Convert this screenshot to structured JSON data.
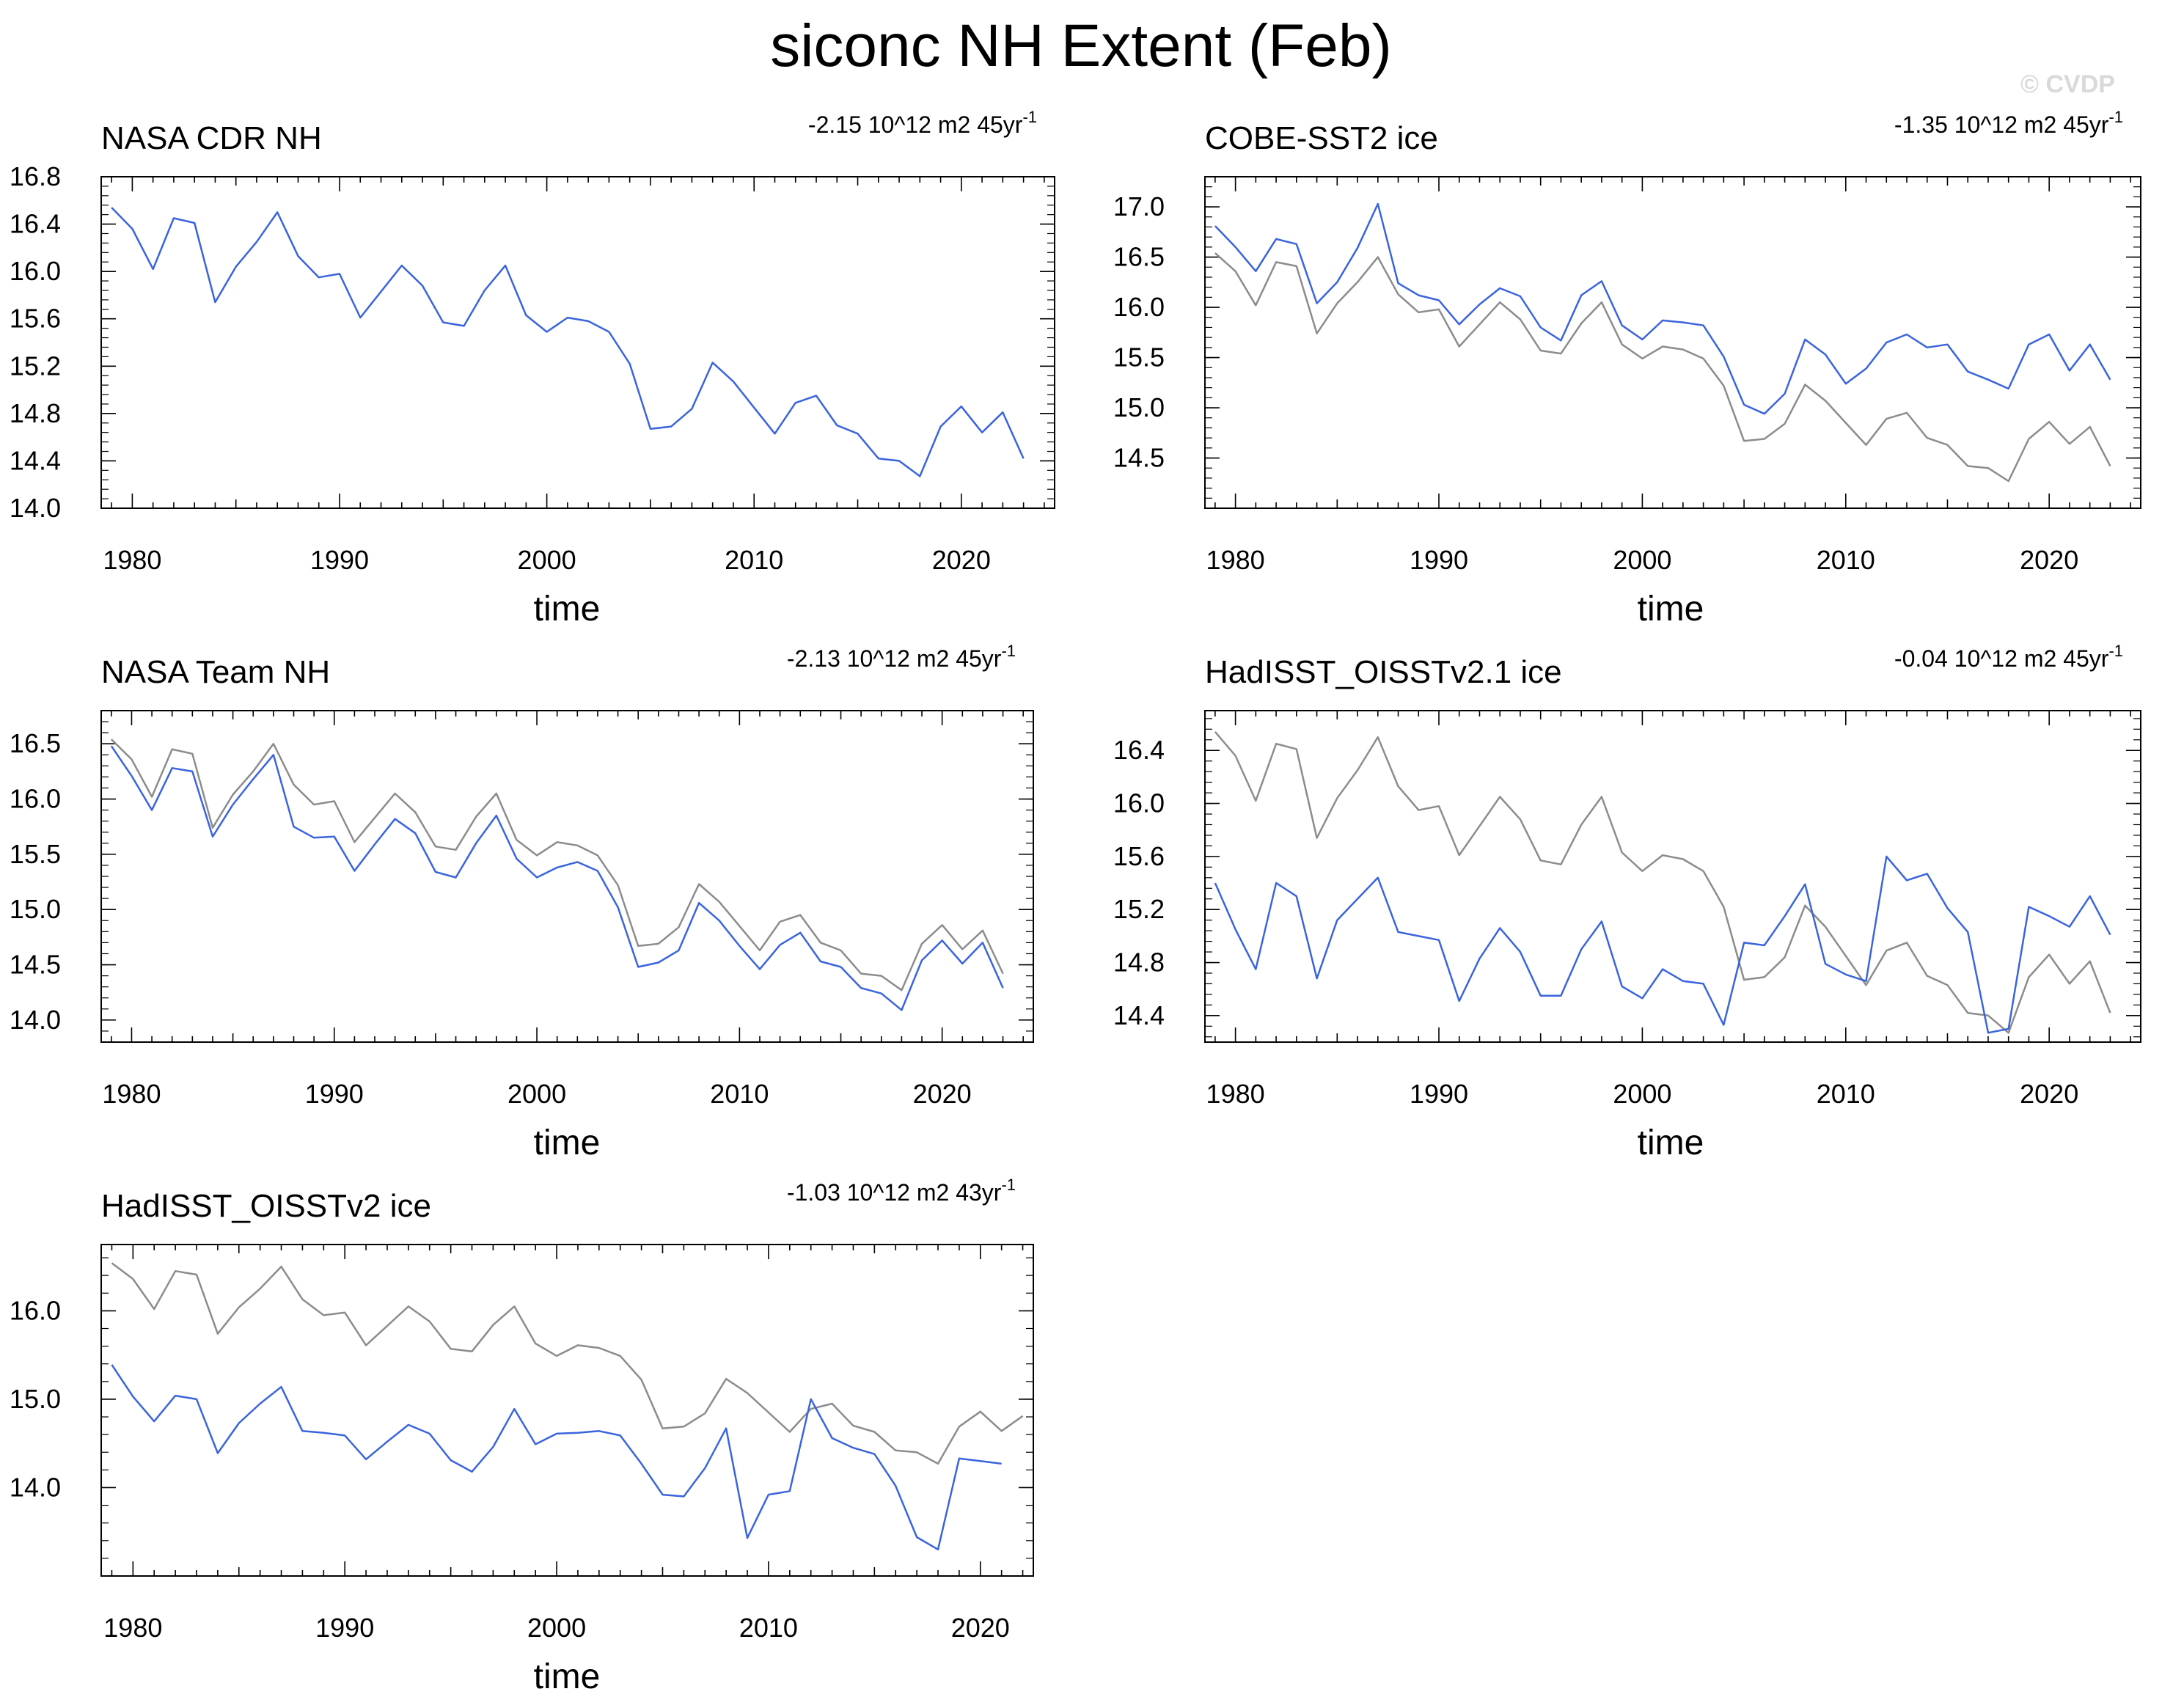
{
  "title": "siconc NH Extent (Feb)",
  "watermark": "© CVDP",
  "colors": {
    "series": "#3b64dc",
    "reference": "#8c8c8c",
    "axis": "#000000"
  },
  "chart_data": [
    {
      "type": "line",
      "title": "NASA CDR NH",
      "trend": "-2.15 10^12 m2 45yr",
      "trend_exp": "-1",
      "xlabel": "time",
      "xlim": [
        1978.5,
        2024.5
      ],
      "ylim": [
        14.0,
        16.8
      ],
      "xticks": [
        1980,
        1990,
        2000,
        2010,
        2020
      ],
      "yticks": [
        14.0,
        14.4,
        14.8,
        15.2,
        15.6,
        16.0,
        16.4,
        16.8
      ],
      "ytick_labels": [
        "14.0",
        "14.4",
        "14.8",
        "15.2",
        "15.6",
        "16.0",
        "16.4",
        "16.8"
      ],
      "x_start": 1979,
      "series": [
        {
          "color": "#3b64dc",
          "values": [
            16.54,
            16.36,
            16.02,
            16.45,
            16.41,
            15.74,
            16.04,
            16.25,
            16.5,
            16.13,
            15.95,
            15.98,
            15.61,
            15.83,
            16.05,
            15.88,
            15.57,
            15.54,
            15.84,
            16.05,
            15.63,
            15.49,
            15.61,
            15.58,
            15.49,
            15.22,
            14.67,
            14.69,
            14.84,
            15.23,
            15.07,
            14.85,
            14.63,
            14.89,
            14.95,
            14.7,
            14.63,
            14.42,
            14.4,
            14.27,
            14.69,
            14.86,
            14.64,
            14.81,
            14.42
          ]
        }
      ]
    },
    {
      "type": "line",
      "title": "COBE-SST2 ice",
      "trend": "-1.35 10^12 m2 45yr",
      "trend_exp": "-1",
      "xlabel": "time",
      "xlim": [
        1978.5,
        2024.5
      ],
      "ylim": [
        14.0,
        17.3
      ],
      "xticks": [
        1980,
        1990,
        2000,
        2010,
        2020
      ],
      "yticks": [
        14.5,
        15.0,
        15.5,
        16.0,
        16.5,
        17.0
      ],
      "ytick_labels": [
        "14.5",
        "15.0",
        "15.5",
        "16.0",
        "16.5",
        "17.0"
      ],
      "x_start": 1979,
      "series": [
        {
          "color": "#8c8c8c",
          "values": [
            16.54,
            16.36,
            16.02,
            16.45,
            16.41,
            15.74,
            16.04,
            16.25,
            16.5,
            16.13,
            15.95,
            15.98,
            15.61,
            15.83,
            16.05,
            15.88,
            15.57,
            15.54,
            15.84,
            16.05,
            15.63,
            15.49,
            15.61,
            15.58,
            15.49,
            15.22,
            14.67,
            14.69,
            14.84,
            15.23,
            15.07,
            14.85,
            14.63,
            14.89,
            14.95,
            14.7,
            14.63,
            14.42,
            14.4,
            14.27,
            14.69,
            14.86,
            14.64,
            14.81,
            14.42
          ]
        },
        {
          "color": "#3b64dc",
          "values": [
            16.81,
            16.6,
            16.36,
            16.68,
            16.63,
            16.04,
            16.25,
            16.59,
            17.03,
            16.24,
            16.12,
            16.07,
            15.83,
            16.03,
            16.19,
            16.11,
            15.8,
            15.67,
            16.12,
            16.26,
            15.82,
            15.68,
            15.87,
            15.85,
            15.82,
            15.51,
            15.03,
            14.94,
            15.14,
            15.68,
            15.53,
            15.24,
            15.39,
            15.65,
            15.73,
            15.6,
            15.63,
            15.36,
            15.28,
            15.19,
            15.63,
            15.73,
            15.37,
            15.63,
            15.28
          ]
        }
      ]
    },
    {
      "type": "line",
      "title": "NASA Team NH",
      "trend": "-2.13 10^12 m2 45yr",
      "trend_exp": "-1",
      "xlabel": "time",
      "xlim": [
        1978.5,
        2024.5
      ],
      "ylim": [
        13.8,
        16.8
      ],
      "xticks": [
        1980,
        1990,
        2000,
        2010,
        2020
      ],
      "yticks": [
        14.0,
        14.5,
        15.0,
        15.5,
        16.0,
        16.5
      ],
      "ytick_labels": [
        "14.0",
        "14.5",
        "15.0",
        "15.5",
        "16.0",
        "16.5"
      ],
      "x_start": 1979,
      "series": [
        {
          "color": "#8c8c8c",
          "values": [
            16.54,
            16.36,
            16.02,
            16.45,
            16.41,
            15.74,
            16.04,
            16.25,
            16.5,
            16.13,
            15.95,
            15.98,
            15.61,
            15.83,
            16.05,
            15.88,
            15.57,
            15.54,
            15.84,
            16.05,
            15.63,
            15.49,
            15.61,
            15.58,
            15.49,
            15.22,
            14.67,
            14.69,
            14.84,
            15.23,
            15.07,
            14.85,
            14.63,
            14.89,
            14.95,
            14.7,
            14.63,
            14.42,
            14.4,
            14.27,
            14.69,
            14.86,
            14.64,
            14.81,
            14.42
          ]
        },
        {
          "color": "#3b64dc",
          "values": [
            16.48,
            16.21,
            15.9,
            16.28,
            16.25,
            15.66,
            15.95,
            16.18,
            16.4,
            15.75,
            15.65,
            15.66,
            15.35,
            15.59,
            15.82,
            15.69,
            15.34,
            15.29,
            15.6,
            15.85,
            15.46,
            15.29,
            15.38,
            15.43,
            15.35,
            15.02,
            14.48,
            14.52,
            14.63,
            15.06,
            14.9,
            14.67,
            14.46,
            14.68,
            14.79,
            14.53,
            14.48,
            14.29,
            14.24,
            14.09,
            14.54,
            14.72,
            14.51,
            14.7,
            14.29
          ]
        }
      ]
    },
    {
      "type": "line",
      "title": "HadISST_OISSTv2.1 ice",
      "trend": "-0.04 10^12 m2 45yr",
      "trend_exp": "-1",
      "xlabel": "time",
      "xlim": [
        1978.5,
        2024.5
      ],
      "ylim": [
        14.2,
        16.7
      ],
      "xticks": [
        1980,
        1990,
        2000,
        2010,
        2020
      ],
      "yticks": [
        14.4,
        14.8,
        15.2,
        15.6,
        16.0,
        16.4
      ],
      "ytick_labels": [
        "14.4",
        "14.8",
        "15.2",
        "15.6",
        "16.0",
        "16.4"
      ],
      "x_start": 1979,
      "series": [
        {
          "color": "#8c8c8c",
          "values": [
            16.54,
            16.36,
            16.02,
            16.45,
            16.41,
            15.74,
            16.04,
            16.25,
            16.5,
            16.13,
            15.95,
            15.98,
            15.61,
            15.83,
            16.05,
            15.88,
            15.57,
            15.54,
            15.84,
            16.05,
            15.63,
            15.49,
            15.61,
            15.58,
            15.49,
            15.22,
            14.67,
            14.69,
            14.84,
            15.23,
            15.07,
            14.85,
            14.63,
            14.89,
            14.95,
            14.7,
            14.63,
            14.42,
            14.4,
            14.27,
            14.69,
            14.86,
            14.64,
            14.81,
            14.42
          ]
        },
        {
          "color": "#3b64dc",
          "values": [
            15.4,
            15.05,
            14.75,
            15.4,
            15.3,
            14.68,
            15.12,
            15.28,
            15.44,
            15.03,
            15.0,
            14.97,
            14.51,
            14.83,
            15.06,
            14.88,
            14.55,
            14.55,
            14.9,
            15.11,
            14.62,
            14.53,
            14.75,
            14.66,
            14.64,
            14.33,
            14.95,
            14.93,
            15.15,
            15.39,
            14.79,
            14.71,
            14.66,
            15.6,
            15.42,
            15.47,
            15.21,
            15.03,
            14.27,
            14.3,
            15.22,
            15.15,
            15.07,
            15.3,
            15.01
          ]
        }
      ]
    },
    {
      "type": "line",
      "title": "HadISST_OISSTv2 ice",
      "trend": "-1.03 10^12 m2 43yr",
      "trend_exp": "-1",
      "xlabel": "time",
      "xlim": [
        1978.5,
        2022.5
      ],
      "ylim": [
        13.0,
        16.75
      ],
      "xticks": [
        1980,
        1990,
        2000,
        2010,
        2020
      ],
      "yticks": [
        14.0,
        15.0,
        16.0
      ],
      "ytick_labels": [
        "14.0",
        "15.0",
        "16.0"
      ],
      "x_start": 1979,
      "series": [
        {
          "color": "#8c8c8c",
          "values": [
            16.54,
            16.36,
            16.02,
            16.45,
            16.41,
            15.74,
            16.04,
            16.25,
            16.5,
            16.13,
            15.95,
            15.98,
            15.61,
            15.83,
            16.05,
            15.88,
            15.57,
            15.54,
            15.84,
            16.05,
            15.63,
            15.49,
            15.61,
            15.58,
            15.49,
            15.22,
            14.67,
            14.69,
            14.84,
            15.23,
            15.07,
            14.85,
            14.63,
            14.89,
            14.95,
            14.7,
            14.63,
            14.42,
            14.4,
            14.27,
            14.69,
            14.86,
            14.64,
            14.81
          ]
        },
        {
          "color": "#3b64dc",
          "values": [
            15.39,
            15.03,
            14.75,
            15.04,
            15.0,
            14.39,
            14.73,
            14.95,
            15.14,
            14.64,
            14.62,
            14.59,
            14.32,
            14.52,
            14.71,
            14.61,
            14.31,
            14.18,
            14.46,
            14.89,
            14.49,
            14.61,
            14.62,
            14.64,
            14.59,
            14.27,
            13.92,
            13.9,
            14.22,
            14.67,
            13.43,
            13.92,
            13.96,
            15.0,
            14.56,
            14.45,
            14.38,
            14.02,
            13.44,
            13.3,
            14.33,
            14.3,
            14.27
          ]
        }
      ]
    }
  ]
}
